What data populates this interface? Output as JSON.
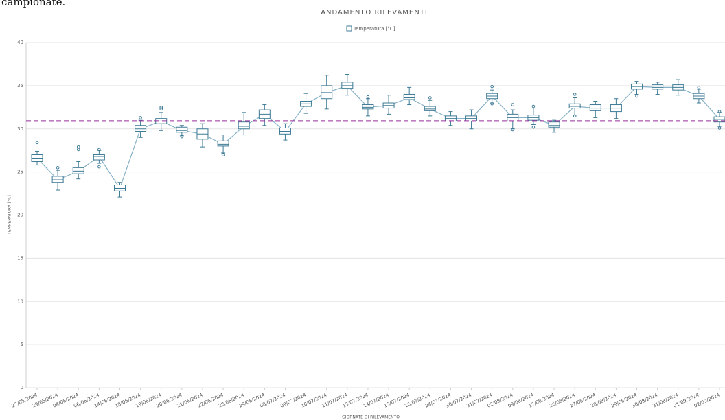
{
  "page_text": "campionate.",
  "chart_data": {
    "type": "box",
    "title": "ANDAMENTO RILEVAMENTI",
    "y_label": "TEMPERATURA [°C]",
    "x_label": "GIORNATE DI RILEVAMENTO",
    "categories": [
      "27/05/2024",
      "29/05/2024",
      "04/06/2024",
      "06/06/2024",
      "14/06/2024",
      "18/06/2024",
      "19/06/2024",
      "20/06/2024",
      "21/06/2024",
      "22/06/2024",
      "28/06/2024",
      "29/06/2024",
      "08/07/2024",
      "09/07/2024",
      "10/07/2024",
      "11/07/2024",
      "13/07/2024",
      "14/07/2024",
      "15/07/2024",
      "16/07/2024",
      "24/07/2024",
      "30/07/2024",
      "31/07/2024",
      "02/08/2024",
      "09/08/2024",
      "17/08/2024",
      "26/08/2024",
      "27/08/2024",
      "28/08/2024",
      "29/08/2024",
      "30/08/2024",
      "31/08/2024",
      "01/09/2024",
      "02/09/2024"
    ],
    "series": [
      {
        "name": "Temperatura [°C]",
        "color": "#3d7a95",
        "line_color": "#86b1c6",
        "min": [
          25.8,
          22.9,
          24.2,
          26.0,
          22.1,
          29.0,
          29.8,
          29.2,
          27.9,
          27.2,
          29.3,
          30.4,
          28.7,
          31.8,
          32.3,
          33.9,
          31.5,
          31.7,
          32.8,
          31.5,
          30.4,
          30.0,
          33.0,
          30.0,
          30.5,
          29.6,
          31.6,
          31.3,
          31.2,
          34.0,
          34.0,
          33.9,
          33.0,
          30.3
        ],
        "q1": [
          26.2,
          23.8,
          24.8,
          26.4,
          22.8,
          29.7,
          30.6,
          29.6,
          28.8,
          28.0,
          30.0,
          31.2,
          29.4,
          32.6,
          33.5,
          34.7,
          32.3,
          32.4,
          33.4,
          32.1,
          30.9,
          30.9,
          33.5,
          30.9,
          31.0,
          30.2,
          32.4,
          32.1,
          32.0,
          34.6,
          34.6,
          34.5,
          33.5,
          30.8
        ],
        "median": [
          26.6,
          24.1,
          25.1,
          26.8,
          23.1,
          30.0,
          30.9,
          29.8,
          29.4,
          28.2,
          30.3,
          31.7,
          29.7,
          32.9,
          34.2,
          35.0,
          32.5,
          32.7,
          33.6,
          32.3,
          31.2,
          31.2,
          33.8,
          31.3,
          31.3,
          30.4,
          32.6,
          32.4,
          32.4,
          34.9,
          34.8,
          34.8,
          33.8,
          31.1
        ],
        "q3": [
          27.0,
          24.5,
          25.5,
          27.0,
          23.5,
          30.4,
          31.2,
          30.2,
          30.0,
          28.6,
          30.8,
          32.2,
          30.1,
          33.2,
          35.0,
          35.4,
          32.8,
          33.0,
          34.0,
          32.6,
          31.5,
          31.5,
          34.1,
          31.7,
          31.6,
          30.8,
          32.9,
          32.8,
          32.8,
          35.2,
          35.1,
          35.1,
          34.1,
          31.4
        ],
        "max": [
          27.4,
          25.2,
          26.2,
          27.5,
          23.8,
          31.0,
          31.9,
          30.4,
          30.6,
          29.3,
          31.9,
          32.8,
          30.6,
          34.1,
          36.2,
          36.3,
          33.5,
          33.9,
          34.8,
          33.3,
          32.0,
          32.2,
          34.5,
          32.2,
          32.4,
          31.0,
          33.6,
          33.2,
          33.5,
          35.5,
          35.4,
          35.7,
          34.6,
          31.9
        ],
        "outliers": [
          [
            28.4
          ],
          [
            25.5
          ],
          [
            27.6,
            27.9
          ],
          [
            25.6,
            27.6
          ],
          [],
          [
            31.3
          ],
          [
            32.3,
            32.5
          ],
          [
            29.1
          ],
          [],
          [
            27.0
          ],
          [],
          [],
          [],
          [],
          [],
          [],
          [
            33.7
          ],
          [],
          [],
          [
            33.6
          ],
          [],
          [],
          [
            34.9,
            32.9
          ],
          [
            32.8,
            29.9
          ],
          [
            32.6,
            30.2
          ],
          [],
          [
            34.0,
            31.5
          ],
          [],
          [],
          [
            33.8
          ],
          [],
          [],
          [
            34.8
          ],
          [
            32.0,
            30.1
          ]
        ]
      }
    ],
    "reference_line": 30.9,
    "reference_color": "#9b2d9b",
    "ylim": [
      0,
      40
    ],
    "yticks": [
      0,
      5,
      10,
      15,
      20,
      25,
      30,
      35,
      40
    ],
    "grid": true
  }
}
